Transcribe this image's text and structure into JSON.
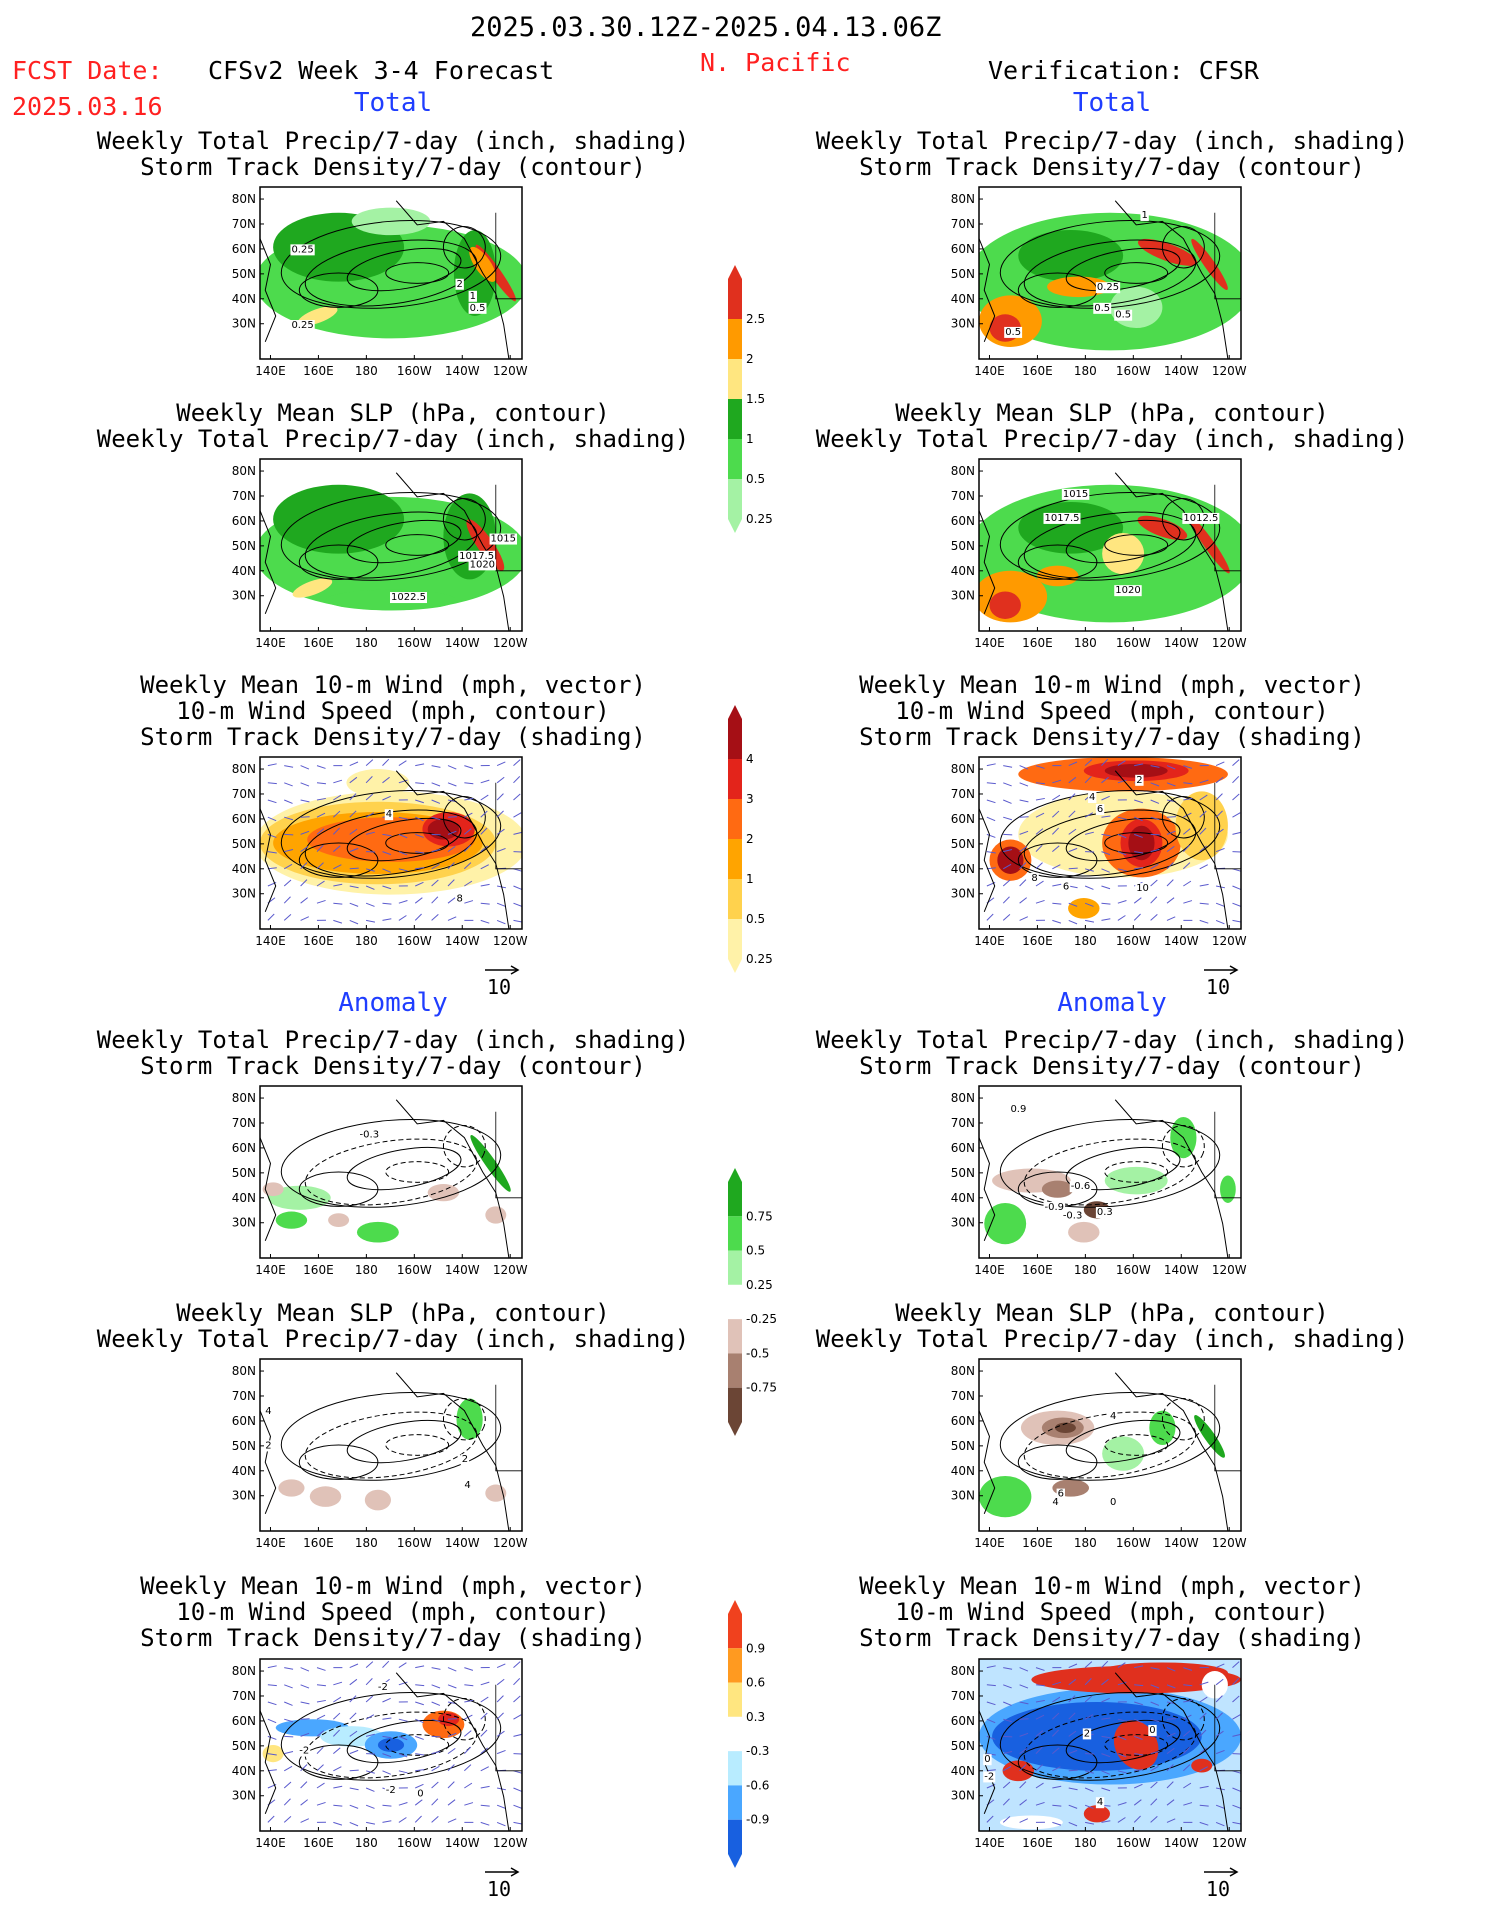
{
  "header": {
    "period": "2025.03.30.12Z-2025.04.13.06Z",
    "fcst_label": "FCST Date:",
    "fcst_date": "2025.03.16",
    "model": "CFSv2 Week 3-4 Forecast",
    "region": "N. Pacific",
    "verification": "Verification: CFSR"
  },
  "sections": {
    "total": "Total",
    "anomaly": "Anomaly"
  },
  "panel_titles": {
    "precip_storm": [
      "Weekly Total Precip/7-day (inch, shading)",
      "Storm Track Density/7-day (contour)"
    ],
    "slp_precip": [
      "Weekly Mean SLP (hPa, contour)",
      "Weekly Total Precip/7-day (inch, shading)"
    ],
    "wind_storm": [
      "Weekly Mean 10-m Wind (mph, vector)",
      "10-m Wind Speed (mph, contour)",
      "Storm Track Density/7-day (shading)"
    ]
  },
  "axes": {
    "lat_labels": [
      "80N",
      "70N",
      "60N",
      "50N",
      "40N",
      "30N"
    ],
    "lon_labels": [
      "140E",
      "160E",
      "180",
      "160W",
      "140W",
      "120W"
    ]
  },
  "vector_reference": "10",
  "contour_labels": {
    "l_total_storm": [
      "0.25",
      "2",
      "1",
      "0.5",
      "0.25"
    ],
    "r_total_storm": [
      "1",
      "0.25",
      "0.5",
      "0.5",
      "0.5"
    ],
    "l_total_slp": [
      "1015",
      "1017.5",
      "1020",
      "1022.5"
    ],
    "r_total_slp": [
      "1015",
      "1017.5",
      "1012.5",
      "1020"
    ],
    "l_total_wind": [
      "4",
      "8"
    ],
    "r_total_wind": [
      "2",
      "4",
      "6",
      "8",
      "6",
      "10"
    ],
    "l_anom_storm": [
      "-0.3"
    ],
    "r_anom_storm": [
      "0.9",
      "-0.6",
      "-0.9",
      "-0.3",
      "0.3"
    ],
    "l_anom_slp": [
      "4",
      "2",
      "2",
      "4"
    ],
    "r_anom_slp": [
      "4",
      "6",
      "4",
      "0"
    ],
    "l_anom_wind": [
      "-2",
      "-2",
      "-2",
      "0"
    ],
    "r_anom_wind": [
      "0",
      "2",
      "0",
      "-2",
      "4"
    ]
  },
  "colorbars": {
    "precip_total": {
      "labels": [
        "2.5",
        "2",
        "1.5",
        "1",
        "0.5",
        "0.25"
      ],
      "colors": [
        "#e0301e",
        "#ff9a00",
        "#ffe680",
        "#1fa81f",
        "#4ddb4d",
        "#a4f2a4"
      ]
    },
    "storm_total": {
      "labels": [
        "4",
        "3",
        "2",
        "1",
        "0.5",
        "0.25"
      ],
      "colors": [
        "#a50f15",
        "#e3241b",
        "#ff6a12",
        "#ffa400",
        "#ffd24d",
        "#fff2a8"
      ]
    },
    "precip_anom": {
      "labels": [
        "0.75",
        "0.5",
        "0.25",
        "-0.25",
        "-0.5",
        "-0.75"
      ],
      "colors": [
        "#1fa81f",
        "#4ddb4d",
        "#a4f2a4",
        "#ffffff",
        "#e0c2b8",
        "#a88070",
        "#6b4535"
      ]
    },
    "storm_anom": {
      "labels": [
        "0.9",
        "0.6",
        "0.3",
        "-0.3",
        "-0.6",
        "-0.9"
      ],
      "colors": [
        "#f0411e",
        "#ff9a20",
        "#ffe680",
        "#ffffff",
        "#b8ecff",
        "#4aa7ff",
        "#1860e0"
      ]
    }
  }
}
